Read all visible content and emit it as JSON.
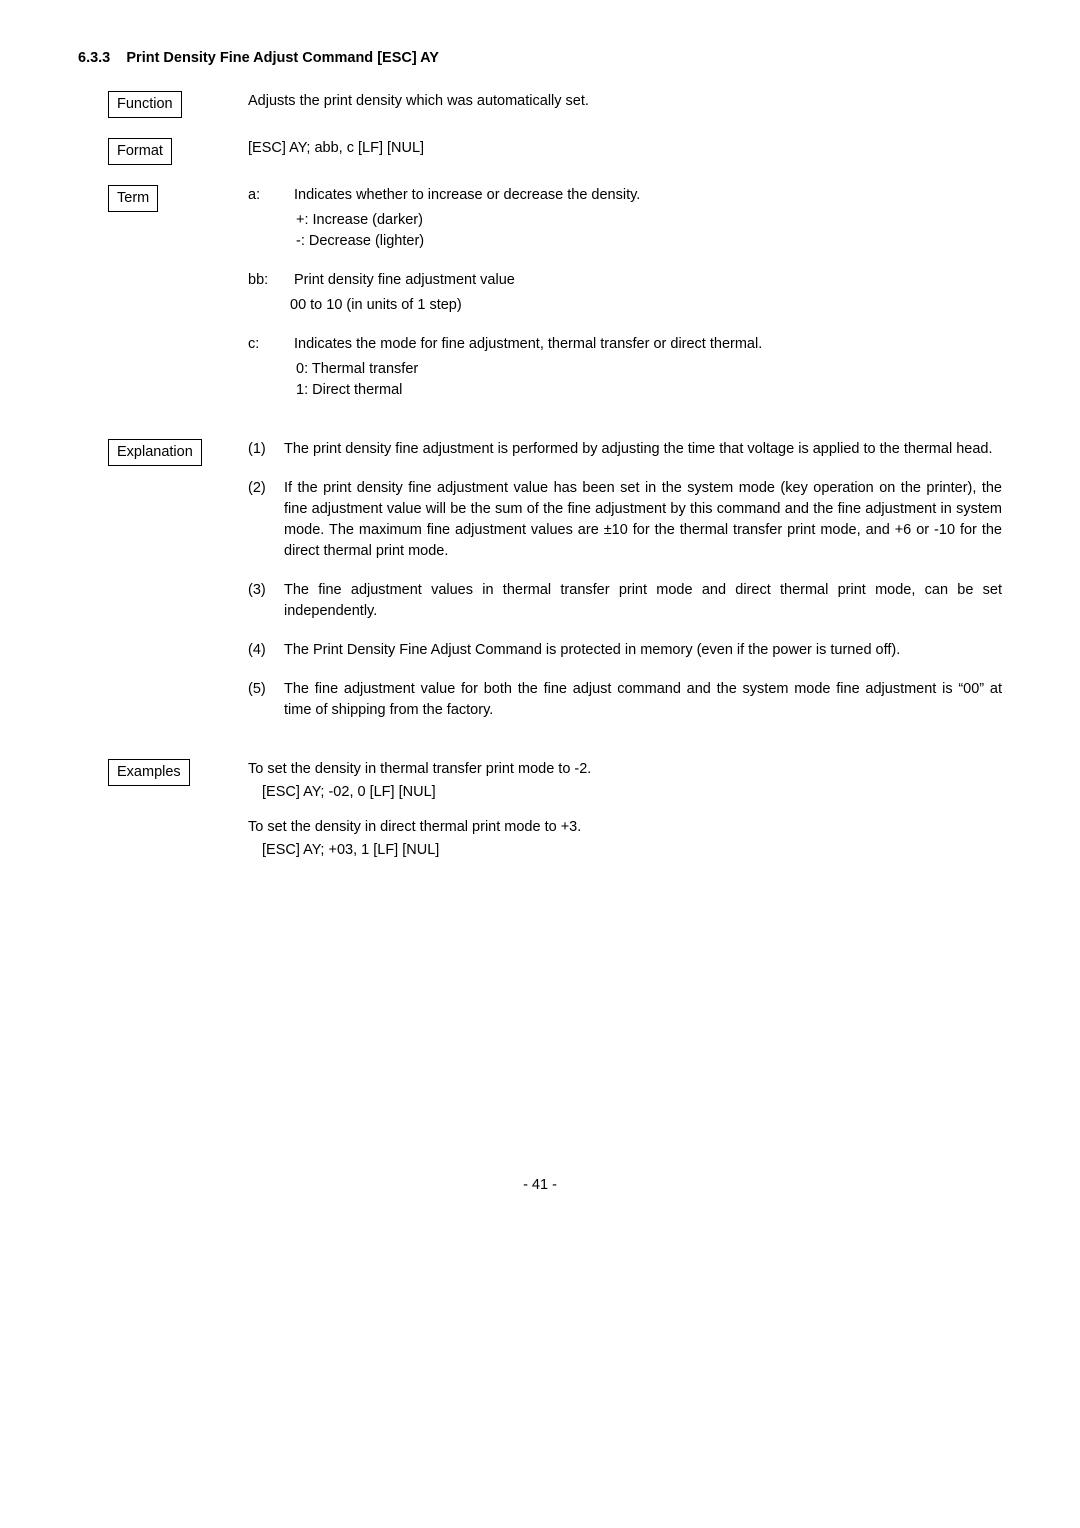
{
  "heading": {
    "number": "6.3.3",
    "title": "Print Density Fine Adjust Command   [ESC] AY"
  },
  "function": {
    "label": "Function",
    "text": "Adjusts the print density which was automatically set."
  },
  "format": {
    "label": "Format",
    "text": "[ESC] AY; abb, c [LF] [NUL]"
  },
  "term": {
    "label": "Term",
    "a": {
      "key": "a:",
      "desc": "Indicates whether to increase or decrease the density.",
      "opt1": "+:  Increase (darker)",
      "opt2": "-:   Decrease (lighter)"
    },
    "bb": {
      "key": "bb:",
      "desc": "Print density fine adjustment value",
      "range": "00 to 10 (in units of 1 step)"
    },
    "c": {
      "key": "c:",
      "desc": "Indicates the mode for fine adjustment, thermal transfer or direct thermal.",
      "opt1": "0:  Thermal transfer",
      "opt2": "1:  Direct thermal"
    }
  },
  "explanation": {
    "label": "Explanation",
    "items": {
      "n1": "(1)",
      "t1": "The print density fine adjustment is performed by adjusting the time that voltage is applied to the thermal head.",
      "n2": "(2)",
      "t2": "If the print density fine adjustment value has been set in the system mode (key operation on the printer), the fine adjustment value will be the sum of the fine adjustment by this command and the fine adjustment in system mode.   The maximum fine adjustment values are ±10 for the thermal transfer print mode, and +6 or -10 for the direct thermal print mode.",
      "n3": "(3)",
      "t3": "The fine adjustment values in thermal transfer print mode and direct thermal print mode, can be set independently.",
      "n4": "(4)",
      "t4": "The Print Density Fine Adjust Command is protected in memory (even if the power is turned off).",
      "n5": "(5)",
      "t5": "The fine adjustment value for both the fine adjust command and the system mode fine adjustment is “00” at time of shipping from the factory."
    }
  },
  "examples": {
    "label": "Examples",
    "line1": "To set the density in thermal transfer print mode to -2.",
    "code1": "[ESC] AY; -02, 0 [LF] [NUL]",
    "line2": "To set the density in direct thermal print mode to +3.",
    "code2": "[ESC] AY; +03, 1 [LF] [NUL]"
  },
  "page_number": "- 41 -"
}
